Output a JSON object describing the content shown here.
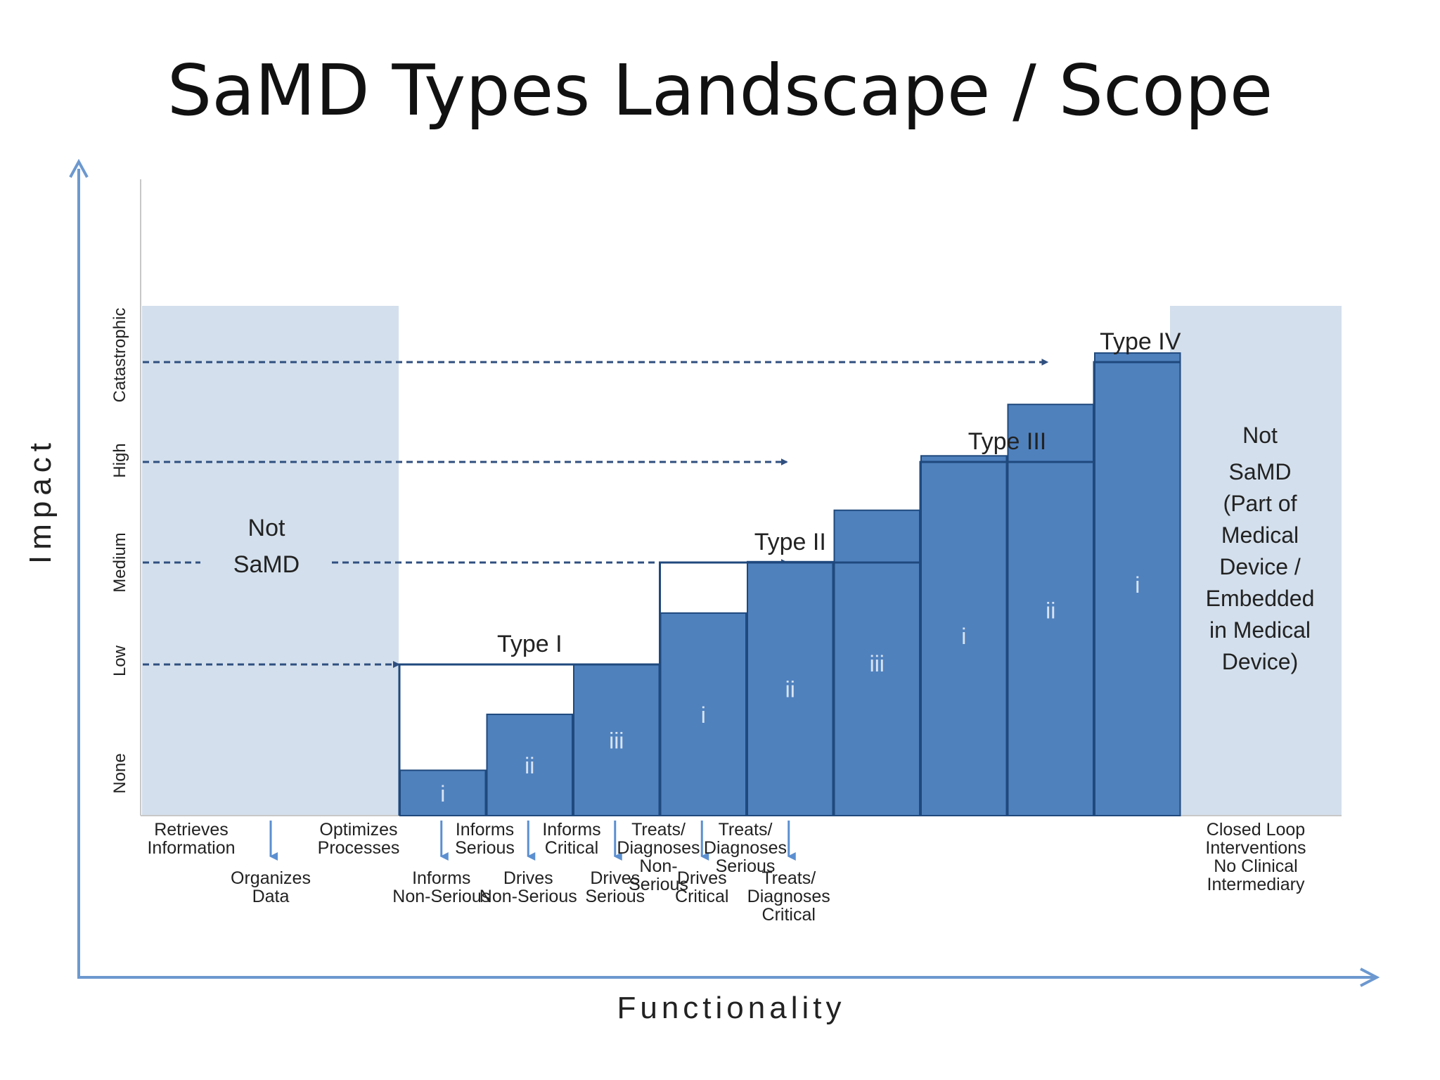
{
  "title": "SaMD Types Landscape / Scope",
  "axes": {
    "x_label": "Functionality",
    "y_label": "Impact"
  },
  "impact_levels": [
    "None",
    "Low",
    "Medium",
    "High",
    "Catastrophic"
  ],
  "functions": [
    {
      "label": [
        "Retrieves",
        "Information"
      ],
      "row": 0
    },
    {
      "label": [
        "Organizes",
        "Data"
      ],
      "row": 1
    },
    {
      "label": [
        "Optimizes",
        "Processes"
      ],
      "row": 0
    },
    {
      "label": [
        "Informs",
        "Non-Serious"
      ],
      "row": 1
    },
    {
      "label": [
        "Informs",
        "Serious"
      ],
      "row": 0
    },
    {
      "label": [
        "Drives",
        "Non-Serious"
      ],
      "row": 1
    },
    {
      "label": [
        "Informs",
        "Critical"
      ],
      "row": 0
    },
    {
      "label": [
        "Drives",
        "Serious"
      ],
      "row": 1
    },
    {
      "label": [
        "Treats/",
        "Diagnoses",
        "Non-",
        "Serious"
      ],
      "row": 0
    },
    {
      "label": [
        "Drives",
        "Critical"
      ],
      "row": 1
    },
    {
      "label": [
        "Treats/",
        "Diagnoses",
        "Serious"
      ],
      "row": 0
    },
    {
      "label": [
        "Treats/",
        "Diagnoses",
        "Critical"
      ],
      "row": 1
    },
    {
      "label": [
        "Closed Loop",
        "Interventions",
        "No Clinical",
        "Intermediary"
      ],
      "row": 0
    }
  ],
  "bars": [
    {
      "label": "i",
      "impact": 0.3
    },
    {
      "label": "ii",
      "impact": 0.67
    },
    {
      "label": "iii",
      "impact": 1.0
    },
    {
      "label": "i",
      "impact": 1.34
    },
    {
      "label": "ii",
      "impact": 1.68
    },
    {
      "label": "iii",
      "impact": 2.02
    },
    {
      "label": "i",
      "impact": 2.38
    },
    {
      "label": "ii",
      "impact": 2.72
    },
    {
      "label": "i",
      "impact": 3.06
    }
  ],
  "types": [
    {
      "name": "Type I",
      "level": 1
    },
    {
      "name": "Type II",
      "level": 2
    },
    {
      "name": "Type III",
      "level": 3
    },
    {
      "name": "Type IV",
      "level": 4
    }
  ],
  "not_samd_left": [
    "Not",
    "SaMD"
  ],
  "not_samd_right": [
    "Not",
    "SaMD",
    "(Part of",
    "Medical",
    "Device /",
    "Embedded",
    "in Medical",
    "Device)"
  ],
  "colors": {
    "bar": "#4f81bd",
    "bar_edge": "#1f497d",
    "shade": "#d3dfec",
    "axis": "#4f81bd",
    "arrow": "#2f4f7f",
    "text": "#222222"
  }
}
